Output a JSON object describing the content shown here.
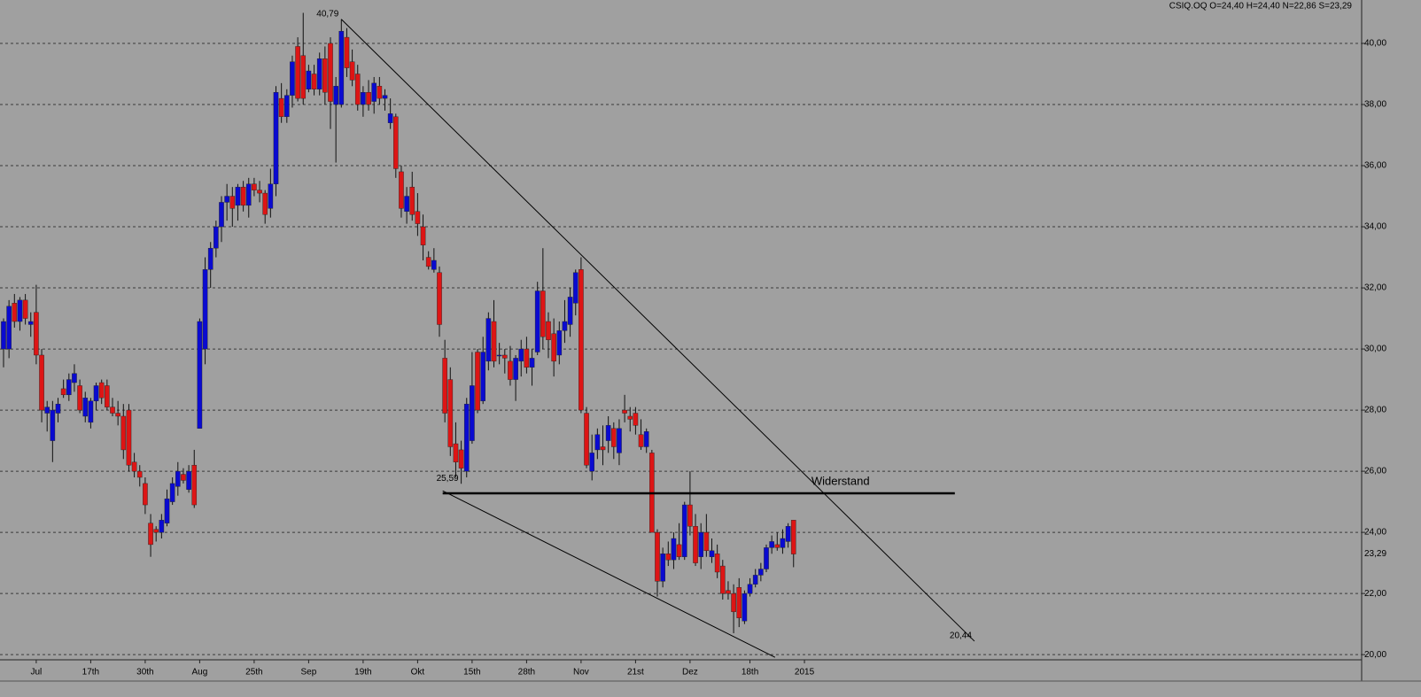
{
  "chart_data": {
    "type": "candlestick",
    "title": "CSIQ.OQ O=24,40 H=24,40 N=22,86 S=23,29",
    "up_color": "#0a0ad0",
    "down_color": "#dd1515",
    "grid": true,
    "ylim": [
      19.83,
      41.42
    ],
    "yticks": [
      {
        "value": 20,
        "label": "20,00"
      },
      {
        "value": 22,
        "label": "22,00"
      },
      {
        "value": 24,
        "label": "24,00"
      },
      {
        "value": 26,
        "label": "26,00"
      },
      {
        "value": 28,
        "label": "28,00"
      },
      {
        "value": 30,
        "label": "30,00"
      },
      {
        "value": 32,
        "label": "32,00"
      },
      {
        "value": 34,
        "label": "34,00"
      },
      {
        "value": 36,
        "label": "36,00"
      },
      {
        "value": 38,
        "label": "38,00"
      },
      {
        "value": 40,
        "label": "40,00"
      }
    ],
    "categories": [
      null,
      null,
      null,
      null,
      null,
      null,
      "Jul",
      null,
      null,
      null,
      null,
      null,
      null,
      null,
      null,
      null,
      "17th",
      null,
      null,
      null,
      null,
      null,
      null,
      null,
      null,
      null,
      "30th",
      null,
      null,
      null,
      null,
      null,
      null,
      null,
      null,
      null,
      "Aug",
      null,
      null,
      null,
      null,
      null,
      null,
      null,
      null,
      null,
      "25th",
      null,
      null,
      null,
      null,
      null,
      null,
      null,
      null,
      null,
      "Sep",
      null,
      null,
      null,
      null,
      null,
      null,
      null,
      null,
      null,
      "19th",
      null,
      null,
      null,
      null,
      null,
      null,
      null,
      null,
      null,
      "Okt",
      null,
      null,
      null,
      null,
      null,
      null,
      null,
      null,
      null,
      "15th",
      null,
      null,
      null,
      null,
      null,
      null,
      null,
      null,
      null,
      "28th",
      null,
      null,
      null,
      null,
      null,
      null,
      null,
      null,
      null,
      "Nov",
      null,
      null,
      null,
      null,
      null,
      null,
      null,
      null,
      null,
      "21st",
      null,
      null,
      null,
      null,
      null,
      null,
      null,
      null,
      null,
      "Dez",
      null,
      null,
      null,
      null,
      null,
      null,
      null,
      null,
      null,
      null,
      "18th",
      null,
      null,
      null,
      null,
      null,
      null,
      null,
      null,
      null,
      "2015"
    ],
    "ohlc": [
      [
        30.0,
        31.0,
        29.4,
        30.9
      ],
      [
        30.0,
        31.6,
        29.7,
        31.4
      ],
      [
        31.5,
        31.8,
        30.7,
        30.9
      ],
      [
        30.9,
        31.7,
        30.6,
        31.6
      ],
      [
        31.6,
        31.8,
        30.8,
        31.0
      ],
      [
        30.8,
        31.2,
        30.4,
        30.9
      ],
      [
        31.2,
        32.1,
        29.5,
        29.8
      ],
      [
        29.8,
        30.0,
        27.6,
        28.0
      ],
      [
        27.9,
        28.3,
        27.3,
        28.1
      ],
      [
        27.0,
        28.3,
        26.3,
        28.0
      ],
      [
        27.9,
        28.4,
        27.6,
        28.2
      ],
      [
        28.7,
        29.0,
        28.4,
        28.5
      ],
      [
        28.5,
        29.2,
        28.3,
        29.0
      ],
      [
        28.9,
        29.5,
        28.6,
        29.2
      ],
      [
        28.8,
        29.0,
        27.9,
        28.0
      ],
      [
        27.8,
        28.6,
        27.6,
        28.4
      ],
      [
        27.6,
        28.4,
        27.4,
        28.3
      ],
      [
        28.3,
        28.9,
        28.0,
        28.8
      ],
      [
        28.9,
        29.0,
        28.2,
        28.4
      ],
      [
        28.8,
        29.0,
        28.0,
        28.1
      ],
      [
        28.1,
        28.4,
        27.8,
        27.9
      ],
      [
        27.9,
        28.3,
        27.5,
        27.8
      ],
      [
        27.8,
        28.2,
        26.4,
        26.7
      ],
      [
        28.0,
        28.2,
        26.0,
        26.2
      ],
      [
        26.3,
        26.6,
        25.8,
        26.0
      ],
      [
        26.0,
        26.2,
        25.5,
        25.8
      ],
      [
        25.6,
        25.8,
        24.6,
        24.9
      ],
      [
        24.3,
        24.6,
        23.2,
        23.6
      ],
      [
        24.1,
        24.2,
        23.7,
        24.0
      ],
      [
        24.0,
        24.6,
        23.8,
        24.4
      ],
      [
        24.3,
        25.4,
        24.2,
        25.1
      ],
      [
        25.0,
        25.8,
        24.9,
        25.6
      ],
      [
        25.5,
        26.3,
        25.2,
        26.0
      ],
      [
        25.9,
        26.1,
        25.6,
        25.7
      ],
      [
        25.4,
        26.2,
        25.3,
        26.0
      ],
      [
        26.2,
        26.7,
        24.8,
        24.9
      ],
      [
        27.4,
        31.0,
        27.4,
        30.9
      ],
      [
        30.0,
        33.0,
        29.5,
        32.6
      ],
      [
        32.6,
        33.5,
        32.0,
        33.3
      ],
      [
        33.3,
        34.2,
        33.0,
        34.0
      ],
      [
        34.0,
        35.0,
        33.5,
        34.8
      ],
      [
        34.8,
        35.4,
        34.2,
        35.0
      ],
      [
        35.0,
        35.3,
        34.0,
        34.6
      ],
      [
        34.7,
        35.4,
        34.2,
        35.3
      ],
      [
        35.3,
        35.5,
        34.5,
        34.7
      ],
      [
        34.7,
        35.6,
        34.3,
        35.4
      ],
      [
        35.4,
        35.6,
        35.0,
        35.2
      ],
      [
        35.2,
        35.5,
        34.8,
        35.1
      ],
      [
        35.1,
        35.2,
        34.1,
        34.4
      ],
      [
        34.6,
        35.9,
        34.3,
        35.4
      ],
      [
        35.4,
        38.6,
        35.0,
        38.4
      ],
      [
        38.2,
        38.7,
        37.4,
        37.6
      ],
      [
        37.6,
        38.5,
        37.4,
        38.3
      ],
      [
        38.3,
        39.6,
        37.9,
        39.4
      ],
      [
        39.9,
        40.2,
        38.1,
        38.2
      ],
      [
        39.6,
        41.0,
        38.0,
        38.2
      ],
      [
        38.5,
        39.3,
        38.4,
        39.1
      ],
      [
        39.0,
        39.3,
        38.3,
        38.5
      ],
      [
        38.5,
        39.7,
        38.3,
        39.5
      ],
      [
        39.5,
        39.9,
        38.0,
        38.4
      ],
      [
        40.0,
        40.2,
        37.2,
        38.1
      ],
      [
        38.0,
        38.9,
        36.1,
        38.6
      ],
      [
        38.0,
        40.79,
        37.9,
        40.4
      ],
      [
        40.2,
        40.5,
        38.9,
        39.2
      ],
      [
        39.4,
        39.8,
        38.6,
        38.8
      ],
      [
        39.0,
        39.3,
        37.8,
        38.0
      ],
      [
        38.0,
        38.6,
        37.6,
        38.4
      ],
      [
        38.4,
        38.8,
        37.8,
        38.0
      ],
      [
        38.1,
        38.9,
        37.7,
        38.7
      ],
      [
        38.6,
        38.9,
        38.0,
        38.2
      ],
      [
        38.2,
        38.5,
        37.8,
        38.3
      ],
      [
        37.4,
        38.2,
        37.2,
        37.7
      ],
      [
        37.6,
        37.7,
        35.6,
        35.9
      ],
      [
        35.8,
        36.0,
        34.3,
        34.6
      ],
      [
        34.5,
        35.3,
        34.1,
        35.0
      ],
      [
        35.3,
        35.8,
        34.2,
        34.4
      ],
      [
        34.5,
        35.1,
        33.7,
        34.1
      ],
      [
        34.0,
        34.4,
        32.9,
        33.4
      ],
      [
        33.0,
        33.2,
        32.6,
        32.7
      ],
      [
        32.6,
        33.3,
        32.5,
        32.9
      ],
      [
        32.5,
        32.7,
        30.4,
        30.8
      ],
      [
        29.7,
        30.3,
        27.6,
        27.9
      ],
      [
        29.0,
        29.4,
        26.5,
        26.8
      ],
      [
        26.9,
        27.6,
        25.8,
        26.3
      ],
      [
        26.7,
        27.0,
        25.59,
        26.1
      ],
      [
        26.0,
        28.4,
        25.8,
        28.2
      ],
      [
        27.0,
        29.9,
        26.9,
        28.8
      ],
      [
        29.9,
        30.0,
        27.9,
        28.0
      ],
      [
        28.3,
        30.4,
        28.2,
        29.9
      ],
      [
        29.6,
        31.2,
        29.3,
        31.0
      ],
      [
        30.9,
        31.6,
        29.4,
        29.6
      ],
      [
        29.8,
        30.2,
        29.5,
        29.8
      ],
      [
        29.8,
        30.0,
        29.2,
        29.7
      ],
      [
        29.6,
        30.1,
        28.8,
        29.0
      ],
      [
        29.0,
        29.8,
        28.3,
        29.7
      ],
      [
        29.6,
        30.3,
        29.1,
        30.0
      ],
      [
        30.0,
        30.4,
        29.2,
        29.4
      ],
      [
        29.4,
        30.0,
        28.8,
        29.7
      ],
      [
        29.9,
        32.2,
        29.8,
        31.9
      ],
      [
        31.9,
        33.3,
        30.0,
        30.4
      ],
      [
        30.9,
        31.2,
        29.7,
        30.3
      ],
      [
        30.5,
        31.0,
        29.1,
        29.6
      ],
      [
        29.8,
        30.9,
        29.5,
        30.6
      ],
      [
        30.6,
        31.6,
        30.2,
        30.9
      ],
      [
        30.8,
        32.0,
        30.4,
        31.7
      ],
      [
        31.5,
        32.6,
        31.1,
        32.5
      ],
      [
        32.6,
        33.0,
        27.9,
        28.0
      ],
      [
        27.9,
        28.1,
        26.1,
        26.2
      ],
      [
        26.0,
        27.2,
        25.7,
        26.6
      ],
      [
        26.7,
        27.4,
        26.4,
        27.2
      ],
      [
        26.8,
        27.5,
        26.2,
        26.7
      ],
      [
        27.0,
        27.8,
        26.6,
        27.5
      ],
      [
        27.4,
        27.6,
        26.4,
        26.8
      ],
      [
        26.6,
        27.7,
        26.2,
        27.4
      ],
      [
        28.0,
        28.5,
        27.6,
        27.9
      ],
      [
        27.8,
        28.1,
        27.3,
        27.7
      ],
      [
        27.9,
        28.1,
        27.2,
        27.5
      ],
      [
        27.2,
        27.7,
        26.7,
        26.8
      ],
      [
        26.8,
        27.4,
        26.6,
        27.3
      ],
      [
        26.6,
        26.7,
        24.0,
        24.0
      ],
      [
        24.0,
        24.1,
        21.9,
        22.4
      ],
      [
        22.4,
        23.5,
        22.2,
        23.3
      ],
      [
        23.3,
        23.7,
        22.9,
        23.1
      ],
      [
        23.1,
        24.0,
        22.8,
        23.8
      ],
      [
        23.6,
        24.3,
        23.1,
        23.2
      ],
      [
        23.2,
        25.0,
        23.1,
        24.9
      ],
      [
        24.9,
        26.0,
        23.9,
        24.2
      ],
      [
        24.2,
        24.6,
        22.9,
        23.0
      ],
      [
        23.2,
        24.3,
        22.8,
        24.0
      ],
      [
        24.0,
        24.6,
        23.2,
        23.4
      ],
      [
        23.2,
        23.8,
        23.0,
        23.4
      ],
      [
        23.3,
        23.6,
        22.5,
        22.7
      ],
      [
        22.9,
        23.1,
        21.8,
        22.0
      ],
      [
        22.1,
        22.4,
        21.8,
        22.0
      ],
      [
        22.0,
        22.3,
        20.7,
        21.4
      ],
      [
        22.2,
        22.5,
        20.9,
        21.2
      ],
      [
        21.1,
        22.1,
        21.0,
        22.0
      ],
      [
        22.0,
        22.5,
        21.9,
        22.3
      ],
      [
        22.3,
        22.8,
        22.2,
        22.6
      ],
      [
        22.6,
        23.0,
        22.4,
        22.8
      ],
      [
        22.8,
        23.6,
        22.7,
        23.5
      ],
      [
        23.5,
        23.9,
        23.3,
        23.7
      ],
      [
        23.6,
        24.0,
        23.4,
        23.5
      ],
      [
        23.5,
        24.1,
        23.3,
        23.8
      ],
      [
        23.7,
        24.3,
        23.5,
        24.2
      ],
      [
        24.4,
        24.4,
        22.86,
        23.29
      ],
      null,
      null
    ],
    "last_price_label": "23,29",
    "lines": [
      {
        "x": [
          62,
          178.2
        ],
        "y": [
          40.79,
          20.44
        ]
      },
      {
        "x": [
          80.6,
          141.6
        ],
        "y": [
          25.36,
          19.91
        ]
      },
      {
        "x": [
          80.6,
          174.6
        ],
        "y": [
          25.28,
          25.28
        ],
        "label": "Widerstand"
      }
    ],
    "annotations": [
      {
        "x": 62,
        "y": 40.79,
        "label": "40,79"
      },
      {
        "x": 84,
        "y": 25.59,
        "label": "25,59"
      },
      {
        "x": 178.2,
        "y": 20.44,
        "label": "20,44"
      }
    ]
  }
}
